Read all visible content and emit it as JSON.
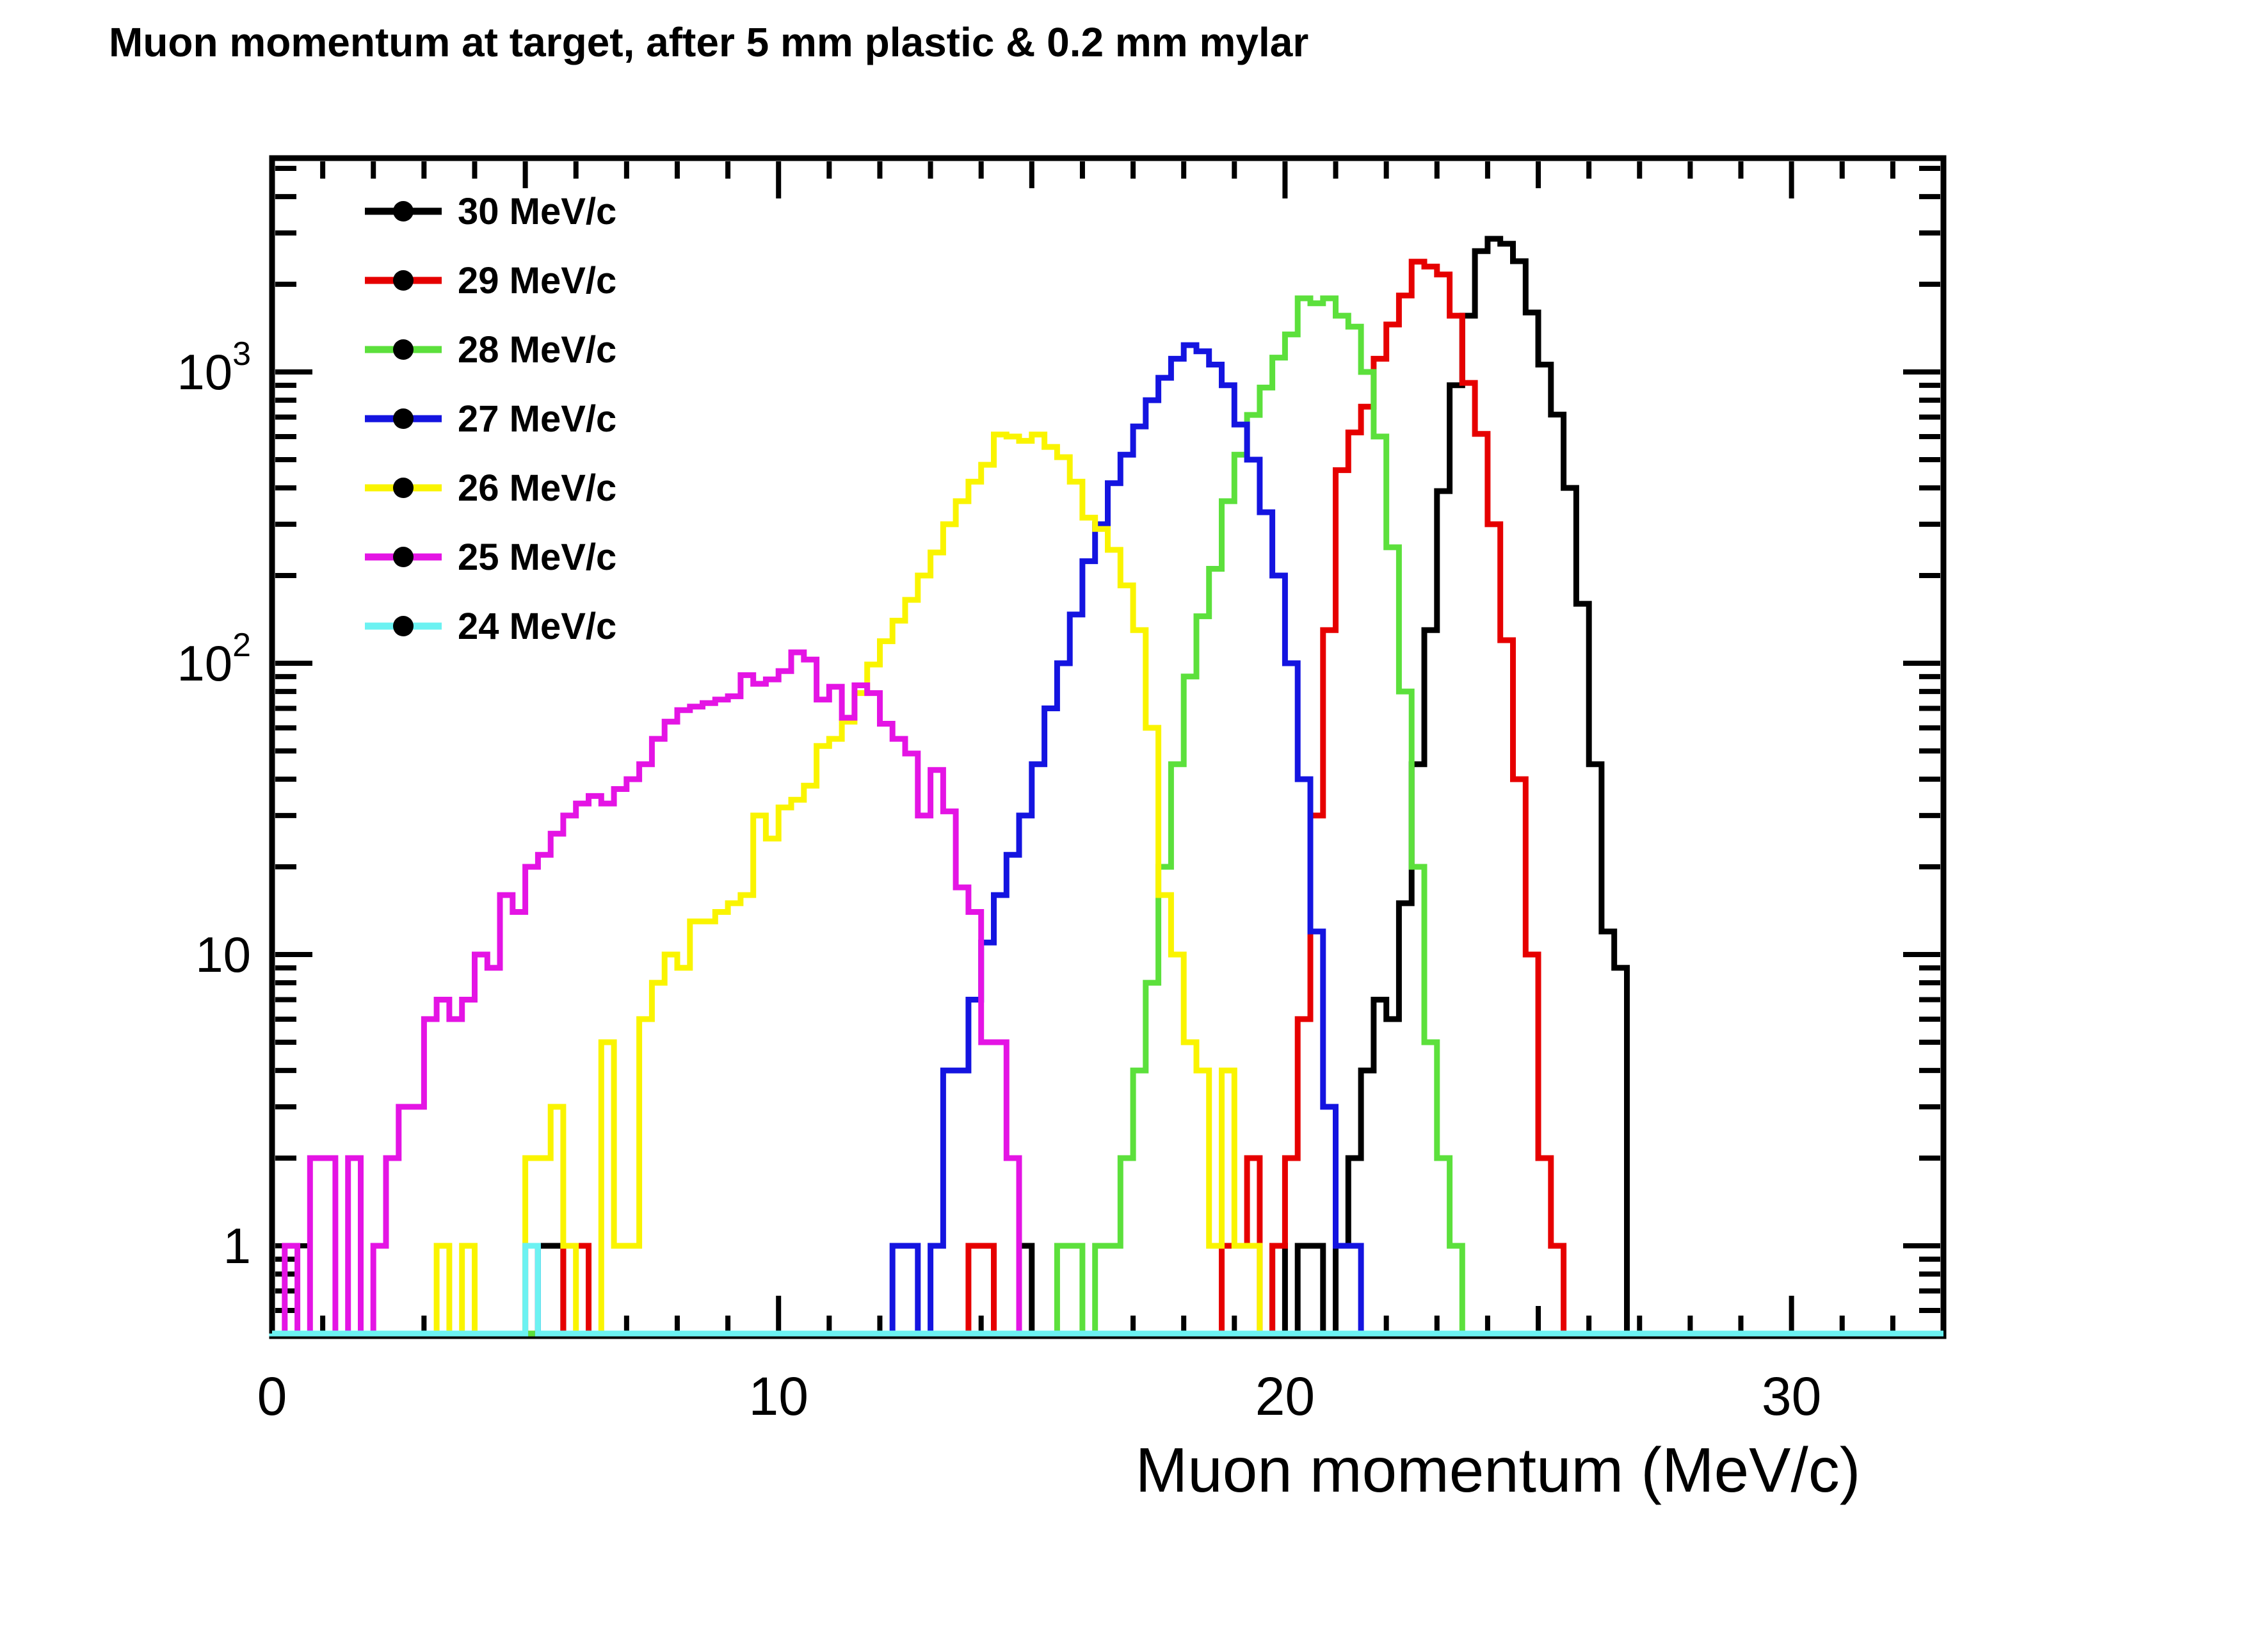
{
  "title": "Muon momentum at target, after 5 mm plastic & 0.2 mm mylar",
  "legend": {
    "items": [
      {
        "label": "30 MeV/c",
        "color": "#000000"
      },
      {
        "label": "29 MeV/c",
        "color": "#e60000"
      },
      {
        "label": "28 MeV/c",
        "color": "#5ce03c"
      },
      {
        "label": "27 MeV/c",
        "color": "#1414e0"
      },
      {
        "label": "26 MeV/c",
        "color": "#faf400"
      },
      {
        "label": "25 MeV/c",
        "color": "#e414e4"
      },
      {
        "label": "24 MeV/c",
        "color": "#6cf2f2"
      }
    ],
    "marker_color": "#000000"
  },
  "chart_data": {
    "type": "bar",
    "subtype": "step-histograms-log-y",
    "title": "Muon momentum at target, after 5 mm plastic & 0.2 mm mylar",
    "xlabel": "Muon momentum (MeV/c)",
    "ylabel": "",
    "x_range": [
      0,
      33
    ],
    "y_range": [
      0.5,
      5400
    ],
    "y_scale": "log",
    "grid": false,
    "legend_position": "top-left",
    "x_tick_labels": [
      "0",
      "10",
      "20",
      "30"
    ],
    "x_tick_values": [
      0,
      10,
      20,
      30
    ],
    "y_tick_labels": [
      "1",
      "10",
      "10^2",
      "10^3"
    ],
    "y_tick_values": [
      1,
      10,
      100,
      1000
    ],
    "bin_width": 0.25,
    "series": [
      {
        "name": "30 MeV/c",
        "color": "#000000",
        "start": 5.25,
        "counts": [
          1,
          1,
          0,
          0,
          0,
          0,
          0,
          0,
          0,
          0,
          0,
          0,
          0,
          0,
          0,
          0,
          0,
          0,
          0,
          0,
          0,
          0,
          0,
          0,
          0,
          0,
          0,
          0,
          0,
          0,
          0,
          0,
          0,
          0,
          0,
          0,
          0,
          0,
          1,
          0,
          0,
          0,
          0,
          0,
          0,
          0,
          0,
          0,
          0,
          0,
          0,
          0,
          0,
          0,
          0,
          0,
          0,
          0,
          1,
          0,
          1,
          1,
          0,
          1,
          2,
          4,
          7,
          6,
          15,
          45,
          130,
          390,
          900,
          1560,
          2600,
          2865,
          2755,
          2400,
          1600,
          1060,
          714,
          400,
          160,
          45,
          12,
          9
        ]
      },
      {
        "name": "29 MeV/c",
        "color": "#e60000",
        "start": 5.75,
        "counts": [
          1,
          1,
          0,
          0,
          0,
          0,
          0,
          0,
          0,
          0,
          0,
          0,
          0,
          0,
          0,
          0,
          0,
          0,
          0,
          0,
          0,
          0,
          0,
          0,
          0,
          0,
          0,
          0,
          0,
          0,
          0,
          0,
          1,
          1,
          0,
          0,
          0,
          0,
          0,
          0,
          0,
          0,
          0,
          0,
          0,
          0,
          0,
          0,
          0,
          0,
          0,
          0,
          1,
          1,
          2,
          0,
          1,
          2,
          6,
          30,
          130,
          460,
          620,
          760,
          1110,
          1455,
          1830,
          2390,
          2300,
          2160,
          1560,
          917,
          613,
          300,
          120,
          40,
          10,
          2,
          1
        ]
      },
      {
        "name": "28 MeV/c",
        "color": "#5ce03c",
        "start": 15.5,
        "counts": [
          1,
          1,
          0,
          1,
          1,
          2,
          4,
          8,
          20,
          45,
          90,
          145,
          211,
          360,
          520,
          712,
          884,
          1120,
          1345,
          1790,
          1720,
          1790,
          1560,
          1430,
          1000,
          600,
          250,
          80,
          20,
          5,
          2,
          1
        ]
      },
      {
        "name": "27 MeV/c",
        "color": "#1414e0",
        "start": 5.0,
        "counts": [
          1,
          0,
          0,
          0,
          0,
          0,
          0,
          0,
          0,
          0,
          0,
          0,
          0,
          0,
          0,
          0,
          0,
          0,
          0,
          0,
          0,
          0,
          0,
          0,
          0,
          0,
          0,
          0,
          0,
          1,
          1,
          0,
          1,
          4,
          4,
          7,
          11,
          16,
          22,
          30,
          45,
          70,
          100,
          147,
          224,
          300,
          415,
          520,
          650,
          800,
          955,
          1110,
          1236,
          1177,
          1060,
          900,
          660,
          500,
          330,
          200,
          100,
          40,
          12,
          3,
          1,
          1
        ]
      },
      {
        "name": "26 MeV/c",
        "color": "#faf400",
        "start": 3.25,
        "counts": [
          1,
          0,
          1,
          0,
          0,
          0,
          0,
          2,
          2,
          3,
          1,
          0,
          0,
          5,
          1,
          1,
          6,
          8,
          10,
          9,
          13,
          13,
          14,
          15,
          16,
          30,
          25,
          32,
          34,
          38,
          52,
          55,
          63,
          79,
          99,
          119,
          140,
          165,
          200,
          240,
          300,
          360,
          420,
          480,
          610,
          600,
          580,
          610,
          553,
          510,
          420,
          316,
          289,
          245,
          185,
          130,
          60,
          16,
          10,
          5,
          4,
          1,
          4,
          1,
          1
        ]
      },
      {
        "name": "25 MeV/c",
        "color": "#e414e4",
        "start": 0.25,
        "counts": [
          1,
          0,
          2,
          2,
          0,
          2,
          0,
          1,
          2,
          3,
          3,
          6,
          7,
          6,
          7,
          10,
          9,
          16,
          14,
          20,
          22,
          26,
          30,
          33,
          35,
          33,
          37,
          40,
          45,
          55,
          63,
          69,
          71,
          73,
          75,
          77,
          91,
          85,
          88,
          94,
          109,
          103,
          75,
          83,
          65,
          84,
          79,
          62,
          55,
          49,
          30,
          43,
          31,
          17,
          14,
          5,
          5,
          2
        ]
      },
      {
        "name": "24 MeV/c",
        "color": "#6cf2f2",
        "start": 5.0,
        "counts": [
          1
        ]
      }
    ]
  }
}
